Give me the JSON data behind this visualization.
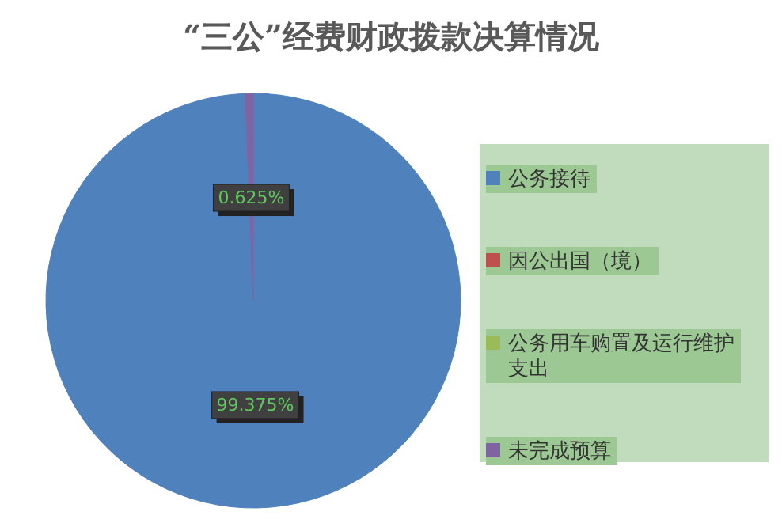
{
  "chart_data": {
    "type": "pie",
    "title": "“三公”经费财政拨款决算情况",
    "categories": [
      "公务接待",
      "因公出国（境）",
      "公务用车购置及运行维护支出",
      "未完成预算"
    ],
    "values": [
      99.375,
      0,
      0,
      0.625
    ],
    "colors": [
      "#4f81bd",
      "#c0504d",
      "#9bbb59",
      "#8064a2"
    ],
    "value_labels": [
      "99.375%",
      null,
      null,
      "0.625%"
    ],
    "legend": "right"
  }
}
